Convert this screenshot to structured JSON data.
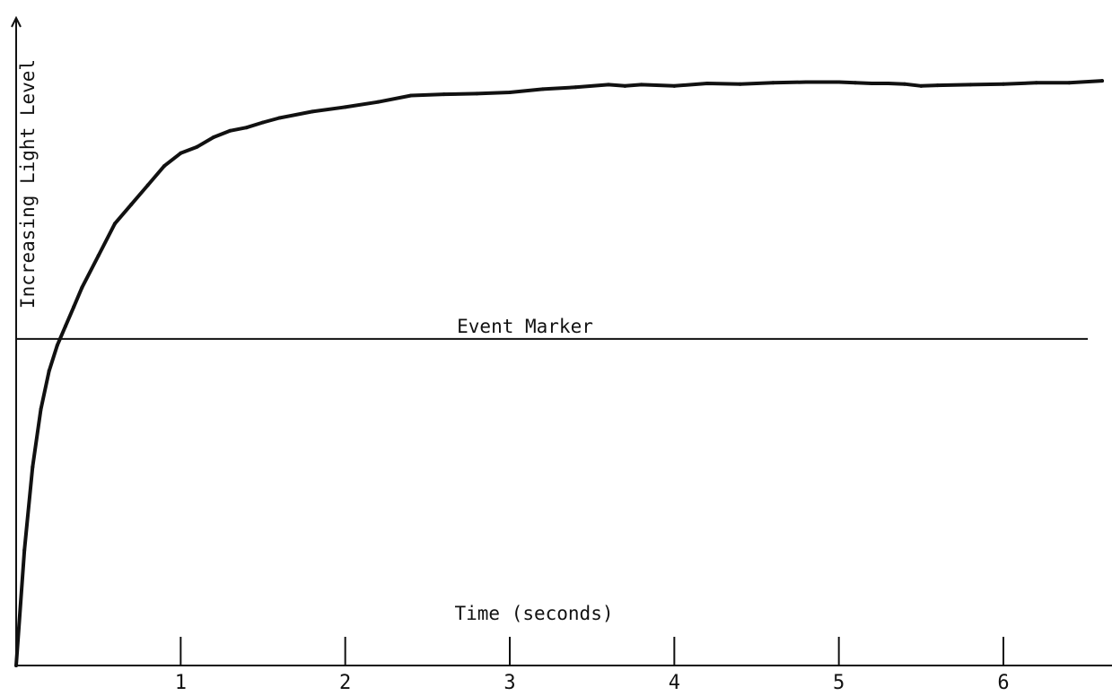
{
  "chart_data": {
    "type": "line",
    "title": "",
    "xlabel": "Time (seconds)",
    "ylabel": "Increasing Light Level",
    "xlim": [
      0,
      6.6
    ],
    "ylim": [
      0,
      1
    ],
    "ticks": {
      "x": [
        1,
        2,
        3,
        4,
        5,
        6
      ],
      "x_labels": [
        "1",
        "2",
        "3",
        "4",
        "5",
        "6"
      ],
      "y": []
    },
    "grid": false,
    "legend": "none",
    "annotations": [
      {
        "text": "Event Marker",
        "type": "horizontal-line",
        "y": 0.51
      }
    ],
    "series": [
      {
        "x": [
          0,
          0.05,
          0.1,
          0.15,
          0.2,
          0.25,
          0.3,
          0.35,
          0.4,
          0.5,
          0.6,
          0.7,
          0.8,
          0.9,
          1.0,
          1.1,
          1.2,
          1.3,
          1.4,
          1.5,
          1.6,
          1.8,
          2.0,
          2.2,
          2.4,
          2.6,
          2.8,
          3.0,
          3.2,
          3.4,
          3.6,
          3.7,
          3.8,
          4.0,
          4.2,
          4.4,
          4.6,
          4.8,
          5.0,
          5.1,
          5.2,
          5.3,
          5.4,
          5.5,
          5.6,
          5.8,
          6.0,
          6.2,
          6.4,
          6.6
        ],
        "y": [
          0.0,
          0.18,
          0.31,
          0.4,
          0.46,
          0.5,
          0.53,
          0.56,
          0.59,
          0.64,
          0.69,
          0.72,
          0.75,
          0.78,
          0.8,
          0.81,
          0.825,
          0.835,
          0.84,
          0.848,
          0.855,
          0.865,
          0.872,
          0.88,
          0.89,
          0.892,
          0.893,
          0.895,
          0.9,
          0.903,
          0.907,
          0.905,
          0.907,
          0.905,
          0.909,
          0.908,
          0.91,
          0.911,
          0.911,
          0.91,
          0.909,
          0.909,
          0.908,
          0.905,
          0.906,
          0.907,
          0.908,
          0.91,
          0.91,
          0.913
        ]
      }
    ],
    "colors": {
      "line": "#111111",
      "axis": "#111111",
      "background": "#ffffff"
    }
  }
}
